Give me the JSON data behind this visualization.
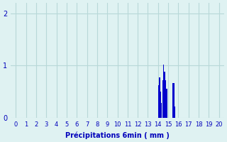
{
  "bar_color": "#0000cc",
  "bg_color": "#dff2f2",
  "grid_color": "#b8d8d8",
  "xlabel": "Précipitations 6min ( mm )",
  "xlabel_color": "#0000bb",
  "ylabel_color": "#0000bb",
  "yticks": [
    0,
    1,
    2
  ],
  "xticks": [
    0,
    1,
    2,
    3,
    4,
    5,
    6,
    7,
    8,
    9,
    10,
    11,
    12,
    13,
    14,
    15,
    16,
    17,
    18,
    19,
    20
  ],
  "ylim": [
    0,
    2.2
  ],
  "xlim": [
    -0.5,
    20.5
  ],
  "bars": [
    [
      14.05,
      0.62
    ],
    [
      14.15,
      0.78
    ],
    [
      14.25,
      0.5
    ],
    [
      14.35,
      0.28
    ],
    [
      14.45,
      0.72
    ],
    [
      14.55,
      1.02
    ],
    [
      14.65,
      0.88
    ],
    [
      14.75,
      0.72
    ],
    [
      14.85,
      0.56
    ],
    [
      15.45,
      0.67
    ],
    [
      15.55,
      0.67
    ],
    [
      15.65,
      0.22
    ]
  ],
  "bar_width": 0.09
}
